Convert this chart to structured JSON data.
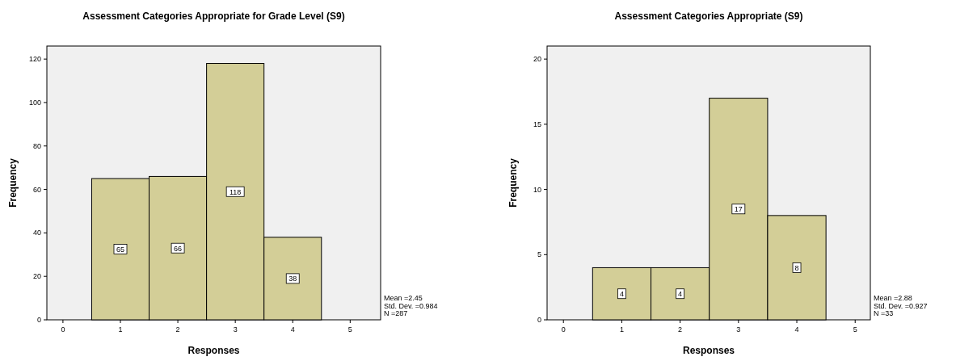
{
  "chart_data": [
    {
      "type": "histogram",
      "title": "Assessment Categories Appropriate for Grade Level (S9)",
      "xlabel": "Responses",
      "ylabel": "Frequency",
      "bins": [
        0.5,
        1.5,
        2.5,
        3.5,
        4.5
      ],
      "values": [
        65,
        66,
        118,
        38
      ],
      "color": "#d3ce97",
      "xlim": [
        -0.28,
        5.53
      ],
      "xticks": [
        0,
        1,
        2,
        3,
        4,
        5
      ],
      "ylim": [
        0,
        126
      ],
      "yticks": [
        0,
        20,
        40,
        60,
        80,
        100,
        120
      ],
      "data_labels": true,
      "annotations": [
        "Mean =2.45",
        "Std. Dev. =0.984",
        "N =287"
      ]
    },
    {
      "type": "histogram",
      "title": "Assessment Categories Appropriate (S9)",
      "xlabel": "Responses",
      "ylabel": "Frequency",
      "bins": [
        0.5,
        1.5,
        2.5,
        3.5,
        4.5
      ],
      "values": [
        4,
        4,
        17,
        8
      ],
      "color": "#d3ce97",
      "xlim": [
        -0.28,
        5.26
      ],
      "xticks": [
        0,
        1,
        2,
        3,
        4,
        5
      ],
      "ylim": [
        0,
        21
      ],
      "yticks": [
        0,
        5,
        10,
        15,
        20
      ],
      "data_labels": true,
      "annotations": [
        "Mean =2.88",
        "Std. Dev. =0.927",
        "N =33"
      ]
    }
  ]
}
